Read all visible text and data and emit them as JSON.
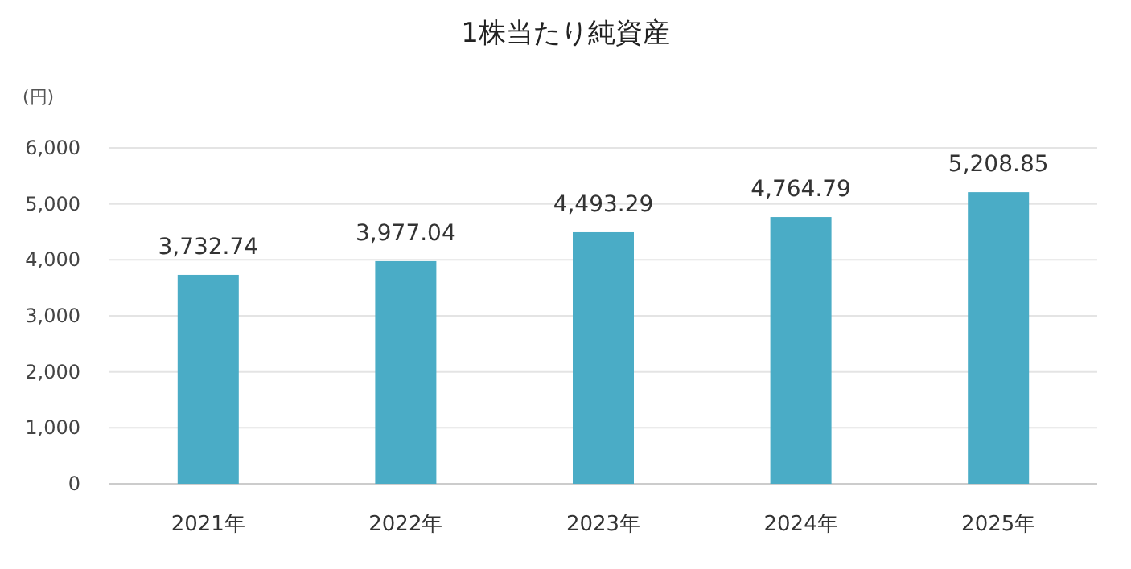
{
  "chart_data": {
    "type": "bar",
    "title": "1株当たり純資産",
    "ylabel": "(円)",
    "categories": [
      "2021年",
      "2022年",
      "2023年",
      "2024年",
      "2025年"
    ],
    "values": [
      3732.74,
      3977.04,
      4493.29,
      4764.79,
      5208.85
    ],
    "color": "#4aacc6",
    "ylim": [
      0,
      6000
    ],
    "yticks": [
      {
        "value": 0,
        "label": "0"
      },
      {
        "value": 1000,
        "label": "1,000"
      },
      {
        "value": 2000,
        "label": "2,000"
      },
      {
        "value": 3000,
        "label": "3,000"
      },
      {
        "value": 4000,
        "label": "4,000"
      },
      {
        "value": 5000,
        "label": "5,000"
      },
      {
        "value": 6000,
        "label": "6,000"
      }
    ],
    "value_labels": [
      "3,732.74",
      "3,977.04",
      "4,493.29",
      "4,764.79",
      "5,208.85"
    ],
    "grid": "y"
  }
}
